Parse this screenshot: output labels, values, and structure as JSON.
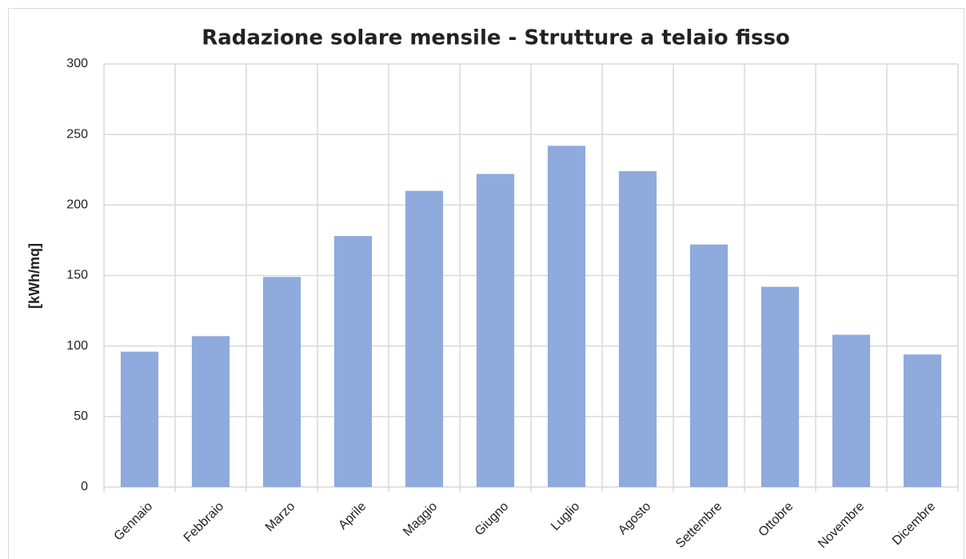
{
  "chart_data": {
    "type": "bar",
    "title": "Radazione solare mensile - Strutture a telaio fisso",
    "y_label": "[kWh/mq]",
    "categories": [
      "Gennaio",
      "Febbraio",
      "Marzo",
      "Aprile",
      "Maggio",
      "Giugno",
      "Luglio",
      "Agosto",
      "Settembre",
      "Ottobre",
      "Novembre",
      "Dicembre"
    ],
    "values": [
      96,
      107,
      149,
      178,
      210,
      222,
      242,
      224,
      172,
      142,
      108,
      94
    ],
    "color": "#8faadc",
    "ylim": [
      0,
      300
    ],
    "yticks": [
      0,
      50,
      100,
      150,
      200,
      250,
      300
    ],
    "grid": true
  }
}
